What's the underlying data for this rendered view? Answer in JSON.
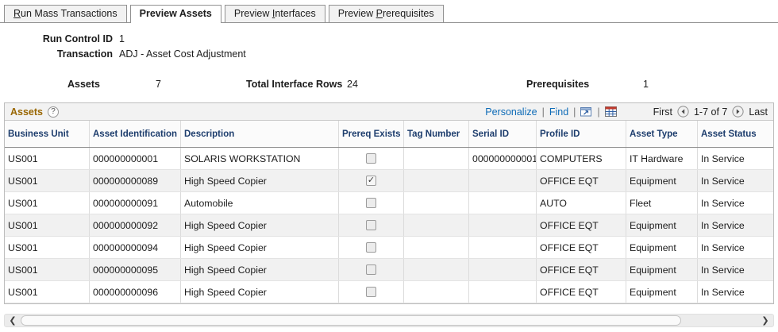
{
  "colors": {
    "grid-title": "#996600",
    "link": "#0d6bb7",
    "header-text": "#1d3d6d",
    "tab-border": "#919191",
    "alt-row": "#f1f1f1"
  },
  "tabs": [
    {
      "id": "run-mass-transactions",
      "pre": "",
      "key": "R",
      "post": "un Mass Transactions",
      "active": false
    },
    {
      "id": "preview-assets",
      "pre": "Preview Assets",
      "key": "",
      "post": "",
      "active": true
    },
    {
      "id": "preview-interfaces",
      "pre": "Preview ",
      "key": "I",
      "post": "nterfaces",
      "active": false
    },
    {
      "id": "preview-prerequisites",
      "pre": "Preview ",
      "key": "P",
      "post": "rerequisites",
      "active": false
    }
  ],
  "fields": {
    "run_control_label": "Run Control ID",
    "run_control_value": "1",
    "transaction_label": "Transaction",
    "transaction_value": "ADJ - Asset Cost Adjustment"
  },
  "summary": {
    "assets_label": "Assets",
    "assets_value": "7",
    "interface_label": "Total Interface Rows",
    "interface_value": "24",
    "prereq_label": "Prerequisites",
    "prereq_value": "1"
  },
  "grid": {
    "title": "Assets",
    "help": "?",
    "toolbar": {
      "personalize": "Personalize",
      "find": "Find",
      "separator": "|"
    },
    "pager": {
      "first": "First",
      "range": "1-7 of 7",
      "last": "Last"
    },
    "columns": [
      {
        "id": "business-unit",
        "field": "business_unit",
        "label": "Business Unit"
      },
      {
        "id": "asset-identification",
        "field": "asset_id",
        "label": "Asset Identification"
      },
      {
        "id": "description",
        "field": "description",
        "label": "Description"
      },
      {
        "id": "prereq-exists",
        "field": "prereq_exists",
        "label": "Prereq Exists"
      },
      {
        "id": "tag-number",
        "field": "tag_number",
        "label": "Tag Number"
      },
      {
        "id": "serial-id",
        "field": "serial_id",
        "label": "Serial ID"
      },
      {
        "id": "profile-id",
        "field": "profile_id",
        "label": "Profile ID"
      },
      {
        "id": "asset-type",
        "field": "asset_type",
        "label": "Asset Type"
      },
      {
        "id": "asset-status",
        "field": "asset_status",
        "label": "Asset Status"
      }
    ],
    "rows": [
      {
        "business_unit": "US001",
        "asset_id": "000000000001",
        "description": "SOLARIS WORKSTATION",
        "prereq_exists": false,
        "tag_number": "",
        "serial_id": "000000000001",
        "profile_id": "COMPUTERS",
        "asset_type": "IT Hardware",
        "asset_status": "In Service"
      },
      {
        "business_unit": "US001",
        "asset_id": "000000000089",
        "description": "High Speed Copier",
        "prereq_exists": true,
        "tag_number": "",
        "serial_id": "",
        "profile_id": "OFFICE EQT",
        "asset_type": "Equipment",
        "asset_status": "In Service"
      },
      {
        "business_unit": "US001",
        "asset_id": "000000000091",
        "description": "Automobile",
        "prereq_exists": false,
        "tag_number": "",
        "serial_id": "",
        "profile_id": "AUTO",
        "asset_type": "Fleet",
        "asset_status": "In Service"
      },
      {
        "business_unit": "US001",
        "asset_id": "000000000092",
        "description": "High Speed Copier",
        "prereq_exists": false,
        "tag_number": "",
        "serial_id": "",
        "profile_id": "OFFICE EQT",
        "asset_type": "Equipment",
        "asset_status": "In Service"
      },
      {
        "business_unit": "US001",
        "asset_id": "000000000094",
        "description": "High Speed Copier",
        "prereq_exists": false,
        "tag_number": "",
        "serial_id": "",
        "profile_id": "OFFICE EQT",
        "asset_type": "Equipment",
        "asset_status": "In Service"
      },
      {
        "business_unit": "US001",
        "asset_id": "000000000095",
        "description": "High Speed Copier",
        "prereq_exists": false,
        "tag_number": "",
        "serial_id": "",
        "profile_id": "OFFICE EQT",
        "asset_type": "Equipment",
        "asset_status": "In Service"
      },
      {
        "business_unit": "US001",
        "asset_id": "000000000096",
        "description": "High Speed Copier",
        "prereq_exists": false,
        "tag_number": "",
        "serial_id": "",
        "profile_id": "OFFICE EQT",
        "asset_type": "Equipment",
        "asset_status": "In Service"
      }
    ]
  },
  "icons": {
    "check": "✓"
  },
  "scrollbar": {
    "left": "❮",
    "right": "❯"
  }
}
